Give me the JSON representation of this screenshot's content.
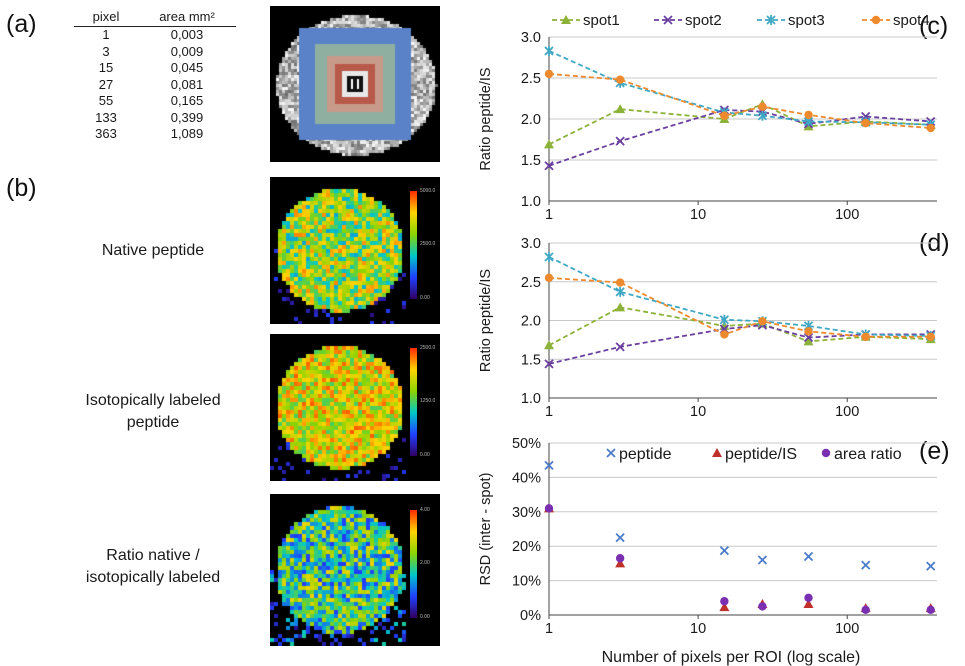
{
  "panels": {
    "a": "(a)",
    "b": "(b)",
    "c": "(c)",
    "d": "(d)",
    "e": "(e)"
  },
  "table": {
    "headers": [
      "pixel",
      "area mm²"
    ],
    "rows": [
      [
        "1",
        "0,003"
      ],
      [
        "3",
        "0,009"
      ],
      [
        "15",
        "0,045"
      ],
      [
        "27",
        "0,081"
      ],
      [
        "55",
        "0,165"
      ],
      [
        "133",
        "0,399"
      ],
      [
        "363",
        "1,089"
      ]
    ]
  },
  "image_labels": {
    "native": "Native peptide",
    "iso_line1": "Isotopically labeled",
    "iso_line2": "peptide",
    "ratio_line1": "Ratio native /",
    "ratio_line2": "isotopically labeled"
  },
  "colorbars": [
    {
      "max": "5000.0",
      "mid": "2500.0",
      "min": "0.00"
    },
    {
      "max": "2500.0",
      "mid": "1250.0",
      "min": "0.00"
    },
    {
      "max": "4.00",
      "mid": "2.00",
      "min": "0.00"
    }
  ],
  "colors": {
    "spot1": "#8db23a",
    "spot2": "#6b3fa0",
    "spot3": "#3fa8c4",
    "spot4": "#ee8a2e",
    "peptide": "#4a7cc9",
    "peptide_is": "#c0302a",
    "area_ratio": "#7a2fb0",
    "grid": "#c8c8c8"
  },
  "chart_data": [
    {
      "type": "line",
      "panel": "c",
      "xscale": "log",
      "x": [
        1,
        3,
        15,
        27,
        55,
        133,
        363
      ],
      "xticks": [
        "1",
        "10",
        "100"
      ],
      "ylabel": "Ratio peptide/IS",
      "ylim": [
        1.0,
        3.0
      ],
      "yticks": [
        "1.0",
        "1.5",
        "2.0",
        "2.5",
        "3.0"
      ],
      "legend_position": "top",
      "series": [
        {
          "name": "spot1",
          "marker": "triangle",
          "values": [
            1.69,
            2.12,
            2.0,
            2.18,
            1.91,
            1.97,
            1.93
          ]
        },
        {
          "name": "spot2",
          "marker": "x",
          "values": [
            1.43,
            1.73,
            2.11,
            2.09,
            1.94,
            2.03,
            1.97
          ]
        },
        {
          "name": "spot3",
          "marker": "star",
          "values": [
            2.83,
            2.44,
            2.08,
            2.04,
            1.97,
            1.96,
            1.93
          ]
        },
        {
          "name": "spot4",
          "marker": "circle",
          "values": [
            2.55,
            2.48,
            2.04,
            2.15,
            2.05,
            1.95,
            1.89
          ]
        }
      ]
    },
    {
      "type": "line",
      "panel": "d",
      "xscale": "log",
      "x": [
        1,
        3,
        15,
        27,
        55,
        133,
        363
      ],
      "xticks": [
        "1",
        "10",
        "100"
      ],
      "ylabel": "Ratio peptide/IS",
      "ylim": [
        1.0,
        3.0
      ],
      "yticks": [
        "1.0",
        "1.5",
        "2.0",
        "2.5",
        "3.0"
      ],
      "series": [
        {
          "name": "spot1",
          "marker": "triangle",
          "values": [
            1.68,
            2.17,
            1.93,
            1.96,
            1.73,
            1.79,
            1.76
          ]
        },
        {
          "name": "spot2",
          "marker": "x",
          "values": [
            1.44,
            1.66,
            1.89,
            1.94,
            1.78,
            1.82,
            1.82
          ]
        },
        {
          "name": "spot3",
          "marker": "star",
          "values": [
            2.82,
            2.37,
            2.01,
            1.99,
            1.93,
            1.82,
            1.8
          ]
        },
        {
          "name": "spot4",
          "marker": "circle",
          "values": [
            2.55,
            2.49,
            1.82,
            1.99,
            1.86,
            1.79,
            1.79
          ]
        }
      ]
    },
    {
      "type": "scatter",
      "panel": "e",
      "xscale": "log",
      "x": [
        1,
        3,
        15,
        27,
        55,
        133,
        363
      ],
      "xticks": [
        "1",
        "10",
        "100"
      ],
      "xlabel": "Number of pixels per ROI (log scale)",
      "ylabel": "RSD (inter - spot)",
      "ylim": [
        0,
        50
      ],
      "yticks": [
        "0%",
        "10%",
        "20%",
        "30%",
        "40%",
        "50%"
      ],
      "legend_position": "top",
      "series": [
        {
          "name": "peptide",
          "marker": "x",
          "values": [
            43.5,
            22.5,
            18.7,
            16.0,
            17.0,
            14.5,
            14.2
          ]
        },
        {
          "name": "peptide/IS",
          "marker": "triangle",
          "values": [
            31.0,
            15.0,
            2.3,
            3.2,
            3.2,
            2.0,
            2.0
          ]
        },
        {
          "name": "area ratio",
          "marker": "circle",
          "values": [
            31.0,
            16.5,
            4.0,
            2.5,
            5.0,
            1.5,
            1.5
          ]
        }
      ]
    }
  ]
}
